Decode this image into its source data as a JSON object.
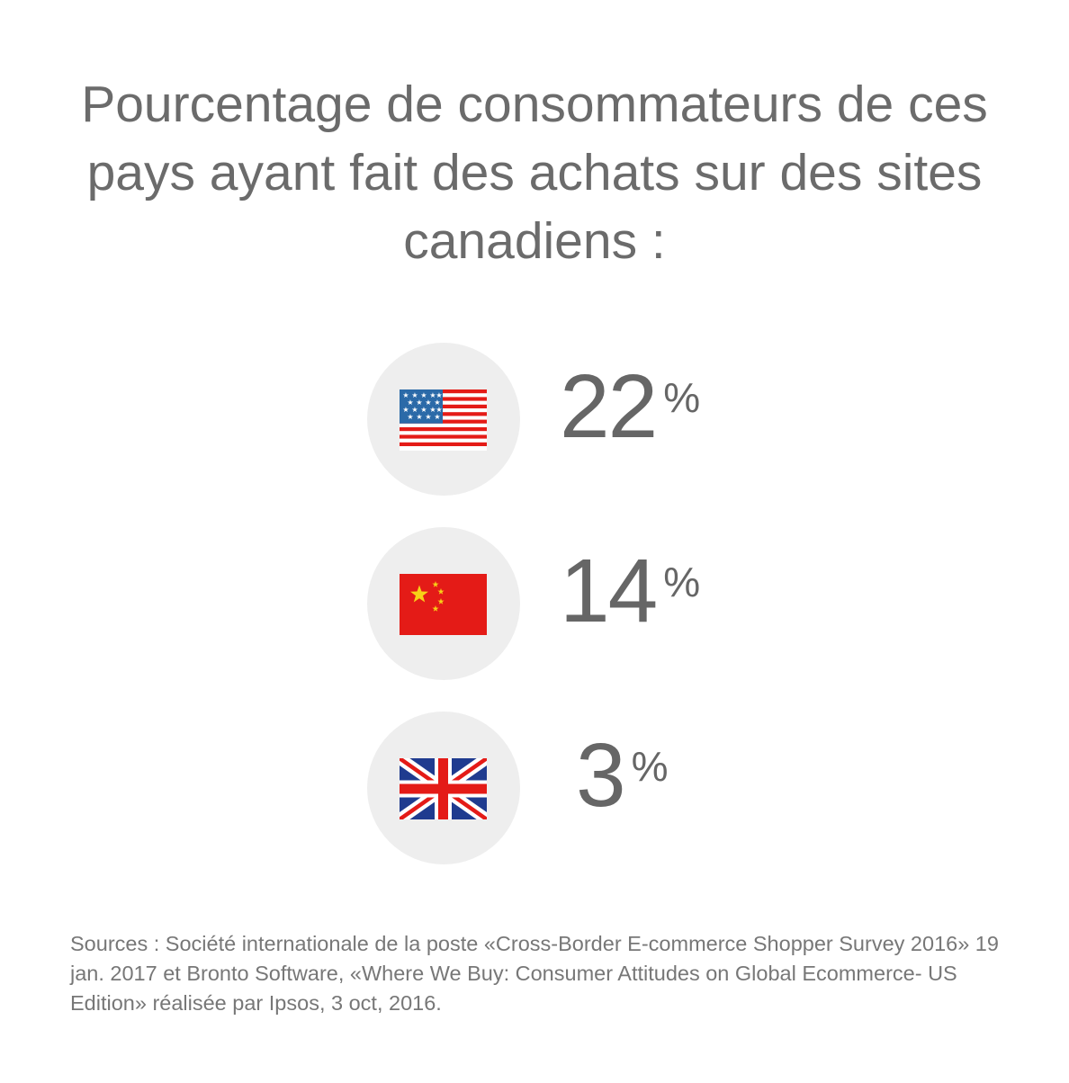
{
  "title": "Pourcentage de consommateurs de ces pays ayant fait des achats sur des sites canadiens :",
  "rows": [
    {
      "country": "États-Unis",
      "flag_icon": "us-flag-icon",
      "value": "22",
      "unit": "%"
    },
    {
      "country": "Chine",
      "flag_icon": "china-flag-icon",
      "value": "14",
      "unit": "%"
    },
    {
      "country": "Royaume-Uni",
      "flag_icon": "uk-flag-icon",
      "value": "3",
      "unit": "%"
    }
  ],
  "sources": "Sources : Société internationale de la poste «Cross-Border E-commerce Shopper Survey 2016» 19 jan. 2017 et Bronto Software, «Where We Buy: Consumer Attitudes on Global Ecommerce- US Edition» réalisée par Ipsos, 3 oct, 2016.",
  "colors": {
    "text": "#666666",
    "circle": "#eeeeee",
    "flag_red": "#e41b17",
    "flag_blue": "#2b6aa8",
    "uk_blue": "#1f3b8f",
    "china_star": "#f7d117"
  }
}
